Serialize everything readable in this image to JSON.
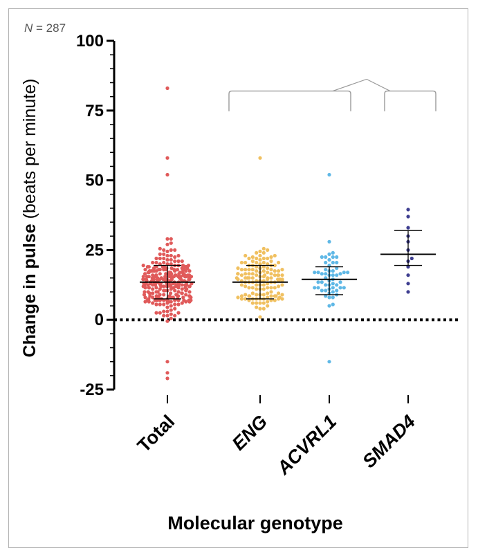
{
  "sample_size": {
    "symbol": "N",
    "value": "= 287"
  },
  "chart_data": {
    "type": "scatter",
    "subtype": "dot-plot-with-median-iqr",
    "title": "",
    "xlabel": "Molecular genotype",
    "ylabel_bold": "Change in pulse",
    "ylabel_normal": "(beats per minute)",
    "ylim": [
      -25,
      100
    ],
    "yticks": [
      -25,
      0,
      25,
      50,
      75,
      100
    ],
    "ytick_labels": [
      "-25",
      "0",
      "25",
      "50",
      "75",
      "100"
    ],
    "minor_tick_step": 5,
    "reference_line": {
      "y": 0,
      "style": "dotted"
    },
    "categories": [
      "Total",
      "ENG",
      "ACVRL1",
      "SMAD4"
    ],
    "category_italic": [
      false,
      true,
      true,
      true
    ],
    "groups": [
      {
        "name": "Total",
        "color": "#e05a5a",
        "n": 287,
        "median": 13.5,
        "q1": 7.5,
        "q3": 19.5,
        "notable_values": [
          83,
          58,
          52,
          -15,
          -19,
          -21
        ],
        "range": [
          -6,
          40
        ]
      },
      {
        "name": "ENG",
        "color": "#f0c060",
        "n": 140,
        "median": 13.5,
        "q1": 7.5,
        "q3": 19.5,
        "notable_values": [
          58
        ],
        "range": [
          -3,
          37
        ]
      },
      {
        "name": "ACVRL1",
        "color": "#5fb8e6",
        "n": 55,
        "median": 14.5,
        "q1": 9,
        "q3": 19,
        "notable_values": [
          52,
          -15
        ],
        "range": [
          -3,
          37
        ]
      },
      {
        "name": "SMAD4",
        "color": "#3e3e90",
        "n": 12,
        "median": 23.5,
        "q1": 19.5,
        "q3": 32,
        "values": [
          10,
          13,
          16,
          19,
          21,
          22,
          25,
          28,
          30,
          33,
          37,
          39.5
        ]
      }
    ],
    "comparison_bracket": {
      "left_group": [
        "ENG",
        "ACVRL1"
      ],
      "right_group": [
        "SMAD4"
      ]
    }
  }
}
